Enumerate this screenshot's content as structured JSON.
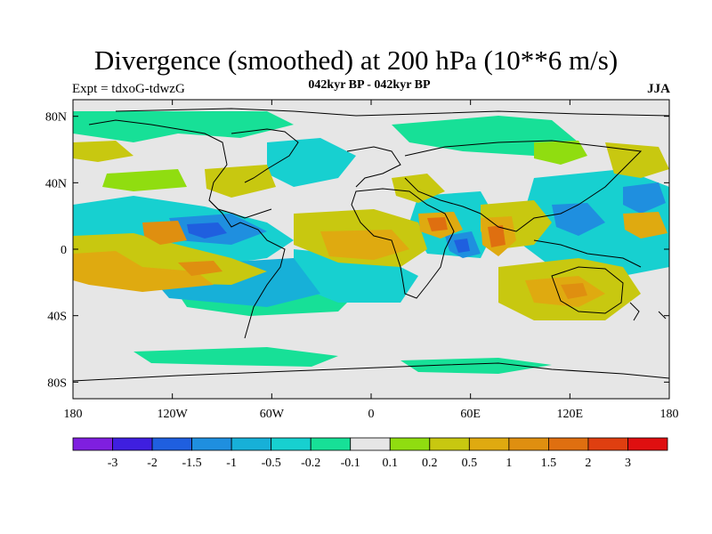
{
  "header": {
    "title": "Divergence (smoothed) at 200 hPa (10**6 m/s)",
    "subtitle": "042kyr BP - 042kyr BP",
    "left_label": "Expt = tdxoG-tdwzG",
    "right_label": "JJA"
  },
  "axes": {
    "x_ticks": [
      {
        "value": -180,
        "label": "180"
      },
      {
        "value": -120,
        "label": "120W"
      },
      {
        "value": -60,
        "label": "60W"
      },
      {
        "value": 0,
        "label": "0"
      },
      {
        "value": 60,
        "label": "60E"
      },
      {
        "value": 120,
        "label": "120E"
      },
      {
        "value": 180,
        "label": "180"
      }
    ],
    "y_ticks": [
      {
        "value": 80,
        "label": "80N"
      },
      {
        "value": 40,
        "label": "40N"
      },
      {
        "value": 0,
        "label": "0"
      },
      {
        "value": -40,
        "label": "40S"
      },
      {
        "value": -80,
        "label": "80S"
      }
    ],
    "lon_range": [
      -180,
      180
    ],
    "lat_range": [
      -90,
      90
    ]
  },
  "colorbar": {
    "colors": [
      "#7f1fdf",
      "#3f1fdf",
      "#1f5fdf",
      "#1f8fdf",
      "#17b0d8",
      "#17d0d0",
      "#17e097",
      "#e6e6e6",
      "#90dd10",
      "#c8c810",
      "#dfaa10",
      "#df8f10",
      "#df6f10",
      "#df3f10",
      "#df0f10"
    ],
    "labels": [
      "-3",
      "-2",
      "-1.5",
      "-1",
      "-0.5",
      "-0.2",
      "-0.1",
      "0.1",
      "0.2",
      "0.5",
      "1",
      "1.5",
      "2",
      "3"
    ]
  }
}
